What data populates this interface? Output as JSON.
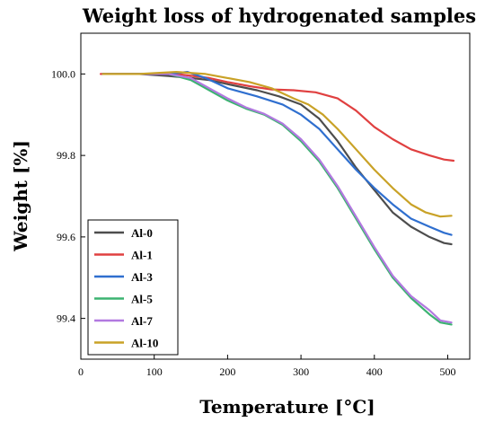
{
  "chart_data": {
    "type": "line",
    "title": "Weight loss of hydrogenated samples",
    "xlabel": "Temperature [°C]",
    "ylabel": "Weight [%]",
    "xlim": [
      0,
      530
    ],
    "ylim": [
      99.3,
      100.1
    ],
    "xticks": [
      0,
      100,
      200,
      300,
      400,
      500
    ],
    "yticks": [
      99.4,
      99.6,
      99.8,
      100.0
    ],
    "xtick_labels": [
      "0",
      "100",
      "200",
      "300",
      "400",
      "500"
    ],
    "ytick_labels": [
      "99.4",
      "99.6",
      "99.8",
      "100.0"
    ],
    "legend_position": "bottom-left",
    "grid": false,
    "series": [
      {
        "name": "Al-0",
        "color": "#4d4d4d",
        "x": [
          30,
          80,
          120,
          150,
          175,
          200,
          240,
          270,
          300,
          325,
          350,
          375,
          400,
          425,
          450,
          475,
          495,
          505
        ],
        "y": [
          100.0,
          100.0,
          99.995,
          99.99,
          99.985,
          99.975,
          99.96,
          99.945,
          99.925,
          99.89,
          99.835,
          99.77,
          99.715,
          99.66,
          99.625,
          99.6,
          99.585,
          99.582
        ]
      },
      {
        "name": "Al-1",
        "color": "#e04040",
        "x": [
          27,
          80,
          130,
          175,
          200,
          230,
          260,
          290,
          320,
          350,
          375,
          400,
          425,
          450,
          475,
          495,
          508
        ],
        "y": [
          100.0,
          100.0,
          100.0,
          99.99,
          99.98,
          99.97,
          99.962,
          99.96,
          99.955,
          99.94,
          99.91,
          99.87,
          99.84,
          99.815,
          99.8,
          99.79,
          99.787
        ]
      },
      {
        "name": "Al-3",
        "color": "#2f6fcf",
        "x": [
          30,
          80,
          120,
          145,
          170,
          200,
          240,
          275,
          300,
          325,
          350,
          375,
          400,
          425,
          450,
          475,
          495,
          505
        ],
        "y": [
          100.0,
          100.0,
          100.0,
          100.005,
          99.99,
          99.965,
          99.945,
          99.925,
          99.9,
          99.865,
          99.815,
          99.765,
          99.72,
          99.68,
          99.645,
          99.625,
          99.61,
          99.605
        ]
      },
      {
        "name": "Al-5",
        "color": "#3cb371",
        "x": [
          30,
          80,
          120,
          150,
          175,
          200,
          225,
          250,
          275,
          300,
          325,
          350,
          375,
          400,
          425,
          450,
          475,
          490,
          505
        ],
        "y": [
          100.0,
          100.0,
          100.0,
          99.985,
          99.96,
          99.935,
          99.915,
          99.9,
          99.875,
          99.835,
          99.785,
          99.72,
          99.645,
          99.57,
          99.5,
          99.45,
          99.41,
          99.39,
          99.385
        ]
      },
      {
        "name": "Al-7",
        "color": "#b279e0",
        "x": [
          30,
          80,
          120,
          150,
          175,
          200,
          225,
          250,
          275,
          300,
          325,
          350,
          375,
          400,
          425,
          450,
          475,
          490,
          505
        ],
        "y": [
          100.0,
          100.0,
          100.0,
          99.99,
          99.965,
          99.94,
          99.918,
          99.902,
          99.878,
          99.84,
          99.79,
          99.725,
          99.65,
          99.575,
          99.505,
          99.455,
          99.42,
          99.395,
          99.39
        ]
      },
      {
        "name": "Al-10",
        "color": "#c9a227",
        "x": [
          30,
          80,
          130,
          170,
          200,
          230,
          260,
          290,
          310,
          330,
          350,
          375,
          400,
          425,
          450,
          470,
          490,
          505
        ],
        "y": [
          100.0,
          100.0,
          100.005,
          100.0,
          99.99,
          99.98,
          99.965,
          99.94,
          99.925,
          99.9,
          99.865,
          99.815,
          99.765,
          99.72,
          99.68,
          99.66,
          99.65,
          99.652
        ]
      }
    ]
  }
}
